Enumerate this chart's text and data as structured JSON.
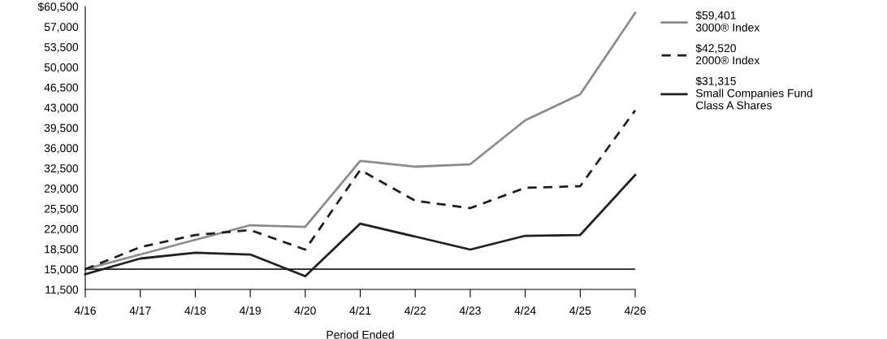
{
  "chart_data": {
    "type": "line",
    "xlabel": "Period Ended",
    "categories": [
      "4/16",
      "4/17",
      "4/18",
      "4/19",
      "4/20",
      "4/21",
      "4/22",
      "4/23",
      "4/24",
      "4/25",
      "4/26"
    ],
    "series": [
      {
        "name": "$59,401\n3000® Index",
        "color": "#8c8c8c",
        "line_style": "solid",
        "values": [
          15000,
          17550,
          20090,
          22620,
          22340,
          33750,
          32760,
          33180,
          40790,
          45300,
          59401
        ]
      },
      {
        "name": "$42,520\n2000® Index",
        "color": "#231f20",
        "line_style": "dashed",
        "values": [
          15000,
          18820,
          20930,
          21780,
          18400,
          32200,
          26850,
          25580,
          29100,
          29380,
          42520
        ]
      },
      {
        "name": "$31,315\nSmall Companies Fund\nClass A Shares",
        "color": "#231f20",
        "line_style": "solid",
        "values": [
          14125,
          16850,
          17840,
          17550,
          13780,
          22900,
          20650,
          18400,
          20790,
          20930,
          31315
        ]
      }
    ],
    "ylim": [
      11500,
      60500
    ],
    "yticks": [
      {
        "value": 11500,
        "label": "11,500"
      },
      {
        "value": 15000,
        "label": "15,000"
      },
      {
        "value": 18500,
        "label": "18,500"
      },
      {
        "value": 22000,
        "label": "22,000"
      },
      {
        "value": 25500,
        "label": "25,500"
      },
      {
        "value": 29000,
        "label": "29,000"
      },
      {
        "value": 32500,
        "label": "32,500"
      },
      {
        "value": 36000,
        "label": "36,000"
      },
      {
        "value": 39500,
        "label": "39,500"
      },
      {
        "value": 43000,
        "label": "43,000"
      },
      {
        "value": 46500,
        "label": "46,500"
      },
      {
        "value": 50000,
        "label": "50,000"
      },
      {
        "value": 53500,
        "label": "53,500"
      },
      {
        "value": 57000,
        "label": "57,000"
      },
      {
        "value": 60500,
        "label": "$60,500"
      }
    ],
    "ref_lines": [
      {
        "axis": "y",
        "value": 15000,
        "color": "#231f20"
      }
    ],
    "grid": false,
    "legend": "top right",
    "marker": "none"
  }
}
